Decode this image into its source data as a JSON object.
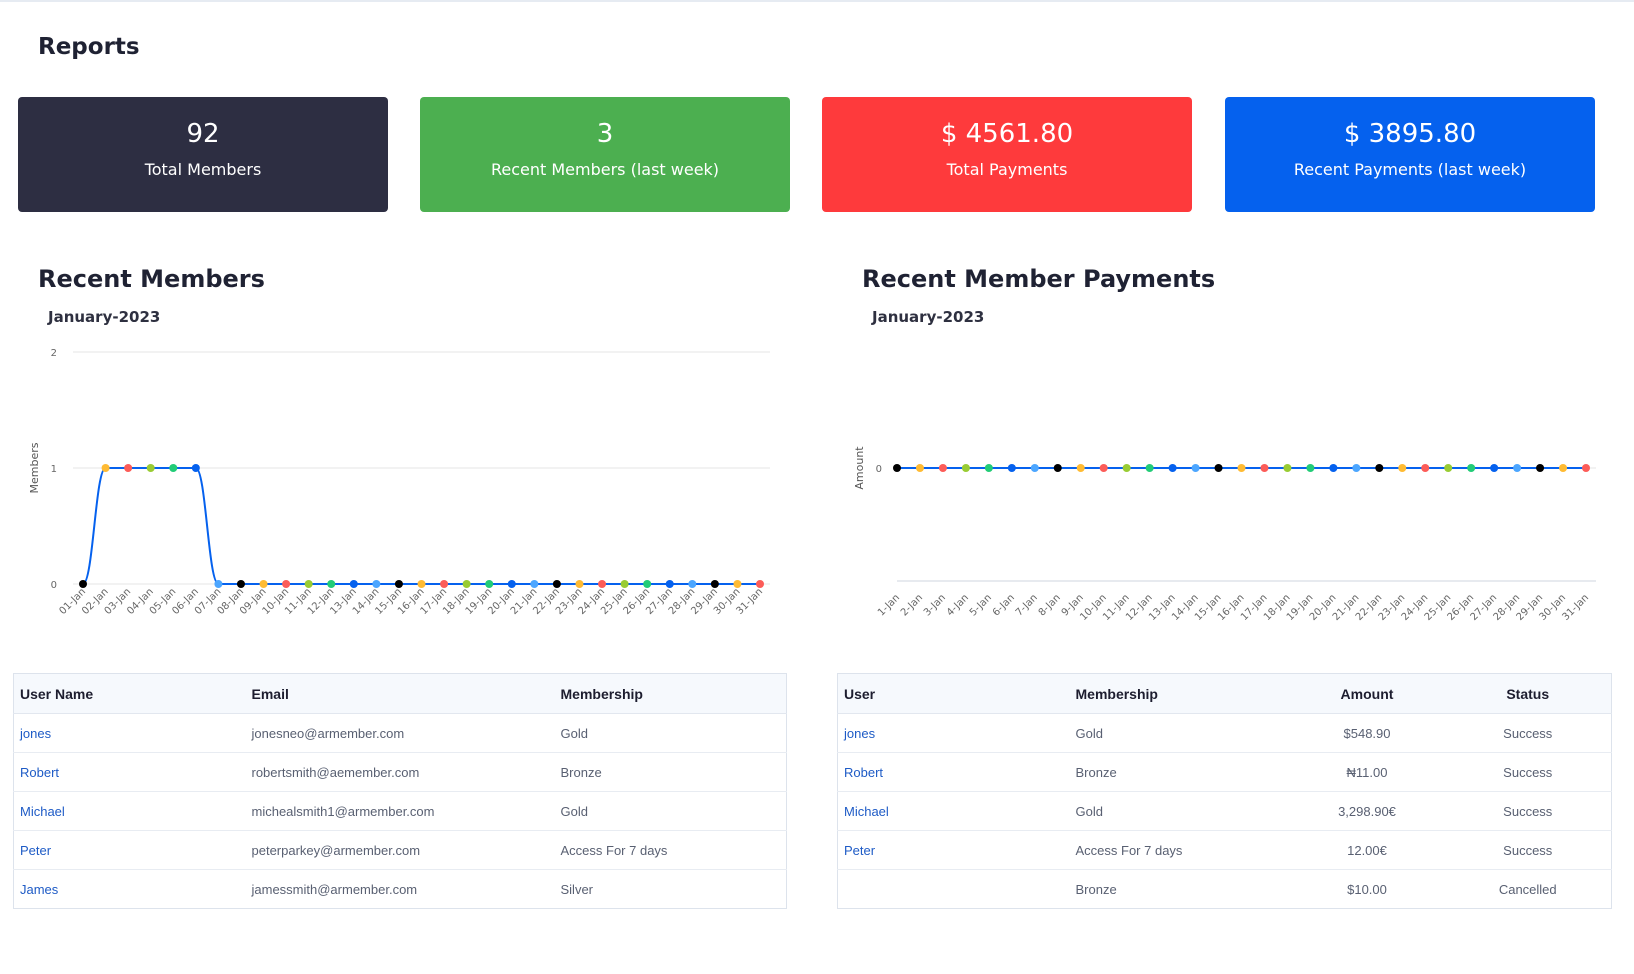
{
  "page_title": "Reports",
  "cards": [
    {
      "value": "92",
      "label": "Total Members",
      "color": "#2d2e42"
    },
    {
      "value": "3",
      "label": "Recent Members (last week)",
      "color": "#4caf50"
    },
    {
      "value": "$ 4561.80",
      "label": "Total Payments",
      "color": "#fe3a3c"
    },
    {
      "value": "$ 3895.80",
      "label": "Recent Payments (last week)",
      "color": "#0561ee"
    }
  ],
  "members_section": {
    "title": "Recent Members",
    "subtitle": "January-2023"
  },
  "payments_section": {
    "title": "Recent Member Payments",
    "subtitle": "January-2023"
  },
  "chart_data": [
    {
      "type": "line",
      "title": "January-2023",
      "ylabel": "Members",
      "xlabel": "",
      "ylim": [
        0,
        2
      ],
      "yticks": [
        "0",
        "1",
        "2"
      ],
      "grid": true,
      "line_color": "#0561ee",
      "categories": [
        "01-Jan",
        "02-Jan",
        "03-Jan",
        "04-Jan",
        "05-Jan",
        "06-Jan",
        "07-Jan",
        "08-Jan",
        "09-Jan",
        "10-Jan",
        "11-Jan",
        "12-Jan",
        "13-Jan",
        "14-Jan",
        "15-Jan",
        "16-Jan",
        "17-Jan",
        "18-Jan",
        "19-Jan",
        "20-Jan",
        "21-Jan",
        "22-Jan",
        "23-Jan",
        "24-Jan",
        "25-Jan",
        "26-Jan",
        "27-Jan",
        "28-Jan",
        "29-Jan",
        "30-Jan",
        "31-Jan"
      ],
      "values": [
        0,
        1,
        1,
        1,
        1,
        1,
        0,
        0,
        0,
        0,
        0,
        0,
        0,
        0,
        0,
        0,
        0,
        0,
        0,
        0,
        0,
        0,
        0,
        0,
        0,
        0,
        0,
        0,
        0,
        0,
        0
      ]
    },
    {
      "type": "line",
      "title": "January-2023",
      "ylabel": "Amount",
      "xlabel": "",
      "yticks": [
        "0"
      ],
      "grid": true,
      "line_color": "#0561ee",
      "categories": [
        "1-Jan",
        "2-Jan",
        "3-Jan",
        "4-Jan",
        "5-Jan",
        "6-Jan",
        "7-Jan",
        "8-Jan",
        "9-Jan",
        "10-Jan",
        "11-Jan",
        "12-Jan",
        "13-Jan",
        "14-Jan",
        "15-Jan",
        "16-Jan",
        "17-Jan",
        "18-Jan",
        "19-Jan",
        "20-Jan",
        "21-Jan",
        "22-Jan",
        "23-Jan",
        "24-Jan",
        "25-Jan",
        "26-Jan",
        "27-Jan",
        "28-Jan",
        "29-Jan",
        "30-Jan",
        "31-Jan"
      ],
      "values": [
        0,
        0,
        0,
        0,
        0,
        0,
        0,
        0,
        0,
        0,
        0,
        0,
        0,
        0,
        0,
        0,
        0,
        0,
        0,
        0,
        0,
        0,
        0,
        0,
        0,
        0,
        0,
        0,
        0,
        0,
        0
      ]
    }
  ],
  "marker_colors": [
    "#000000",
    "#ffbb33",
    "#fc5c58",
    "#99cc33",
    "#22cc77",
    "#0561ee",
    "#4ca6ff"
  ],
  "members_table": {
    "headers": [
      "User Name",
      "Email",
      "Membership"
    ],
    "rows": [
      [
        "jones",
        "jonesneo@armember.com",
        "Gold"
      ],
      [
        "Robert",
        "robertsmith@aemember.com",
        "Bronze"
      ],
      [
        "Michael",
        "michealsmith1@armember.com",
        "Gold"
      ],
      [
        "Peter",
        "peterparkey@armember.com",
        "Access For 7 days"
      ],
      [
        "James",
        "jamessmith@armember.com",
        "Silver"
      ]
    ]
  },
  "payments_table": {
    "headers": [
      "User",
      "Membership",
      "Amount",
      "Status"
    ],
    "rows": [
      [
        "jones",
        "Gold",
        "$548.90",
        "Success"
      ],
      [
        "Robert",
        "Bronze",
        "₦11.00",
        "Success"
      ],
      [
        "Michael",
        "Gold",
        "3,298.90€",
        "Success"
      ],
      [
        "Peter",
        "Access For 7 days",
        "12.00€",
        "Success"
      ],
      [
        "",
        "Bronze",
        "$10.00",
        "Cancelled"
      ]
    ]
  }
}
